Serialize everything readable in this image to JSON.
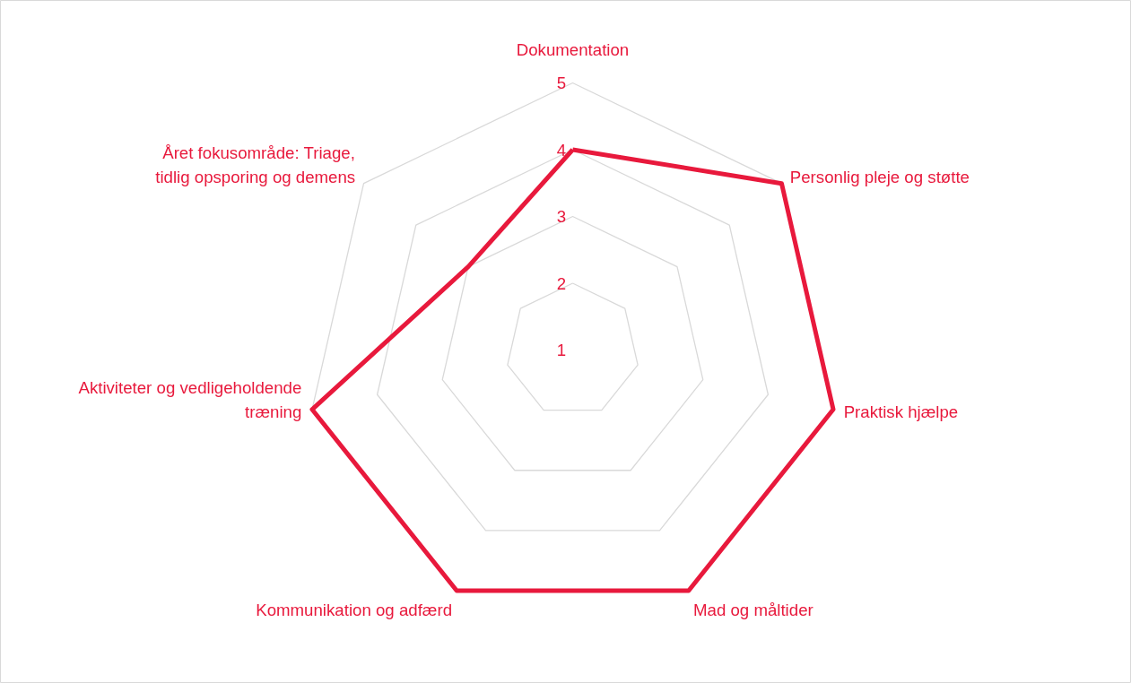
{
  "chart_data": {
    "type": "radar",
    "categories": [
      "Dokumentation",
      "Personlig pleje og støtte",
      "Praktisk hjælpe",
      "Mad og måltider",
      "Kommunikation og adfærd",
      "Aktiviteter og vedligeholdende\ntræning",
      "Året fokusområde: Triage,\ntidlig opsporing og demens"
    ],
    "series": [
      {
        "color": "#e8193c",
        "values": [
          4,
          5,
          5,
          5,
          5,
          5,
          3
        ]
      }
    ],
    "ylim": [
      1,
      5
    ],
    "yticks": [
      1,
      2,
      3,
      4,
      5
    ],
    "grid": true
  }
}
